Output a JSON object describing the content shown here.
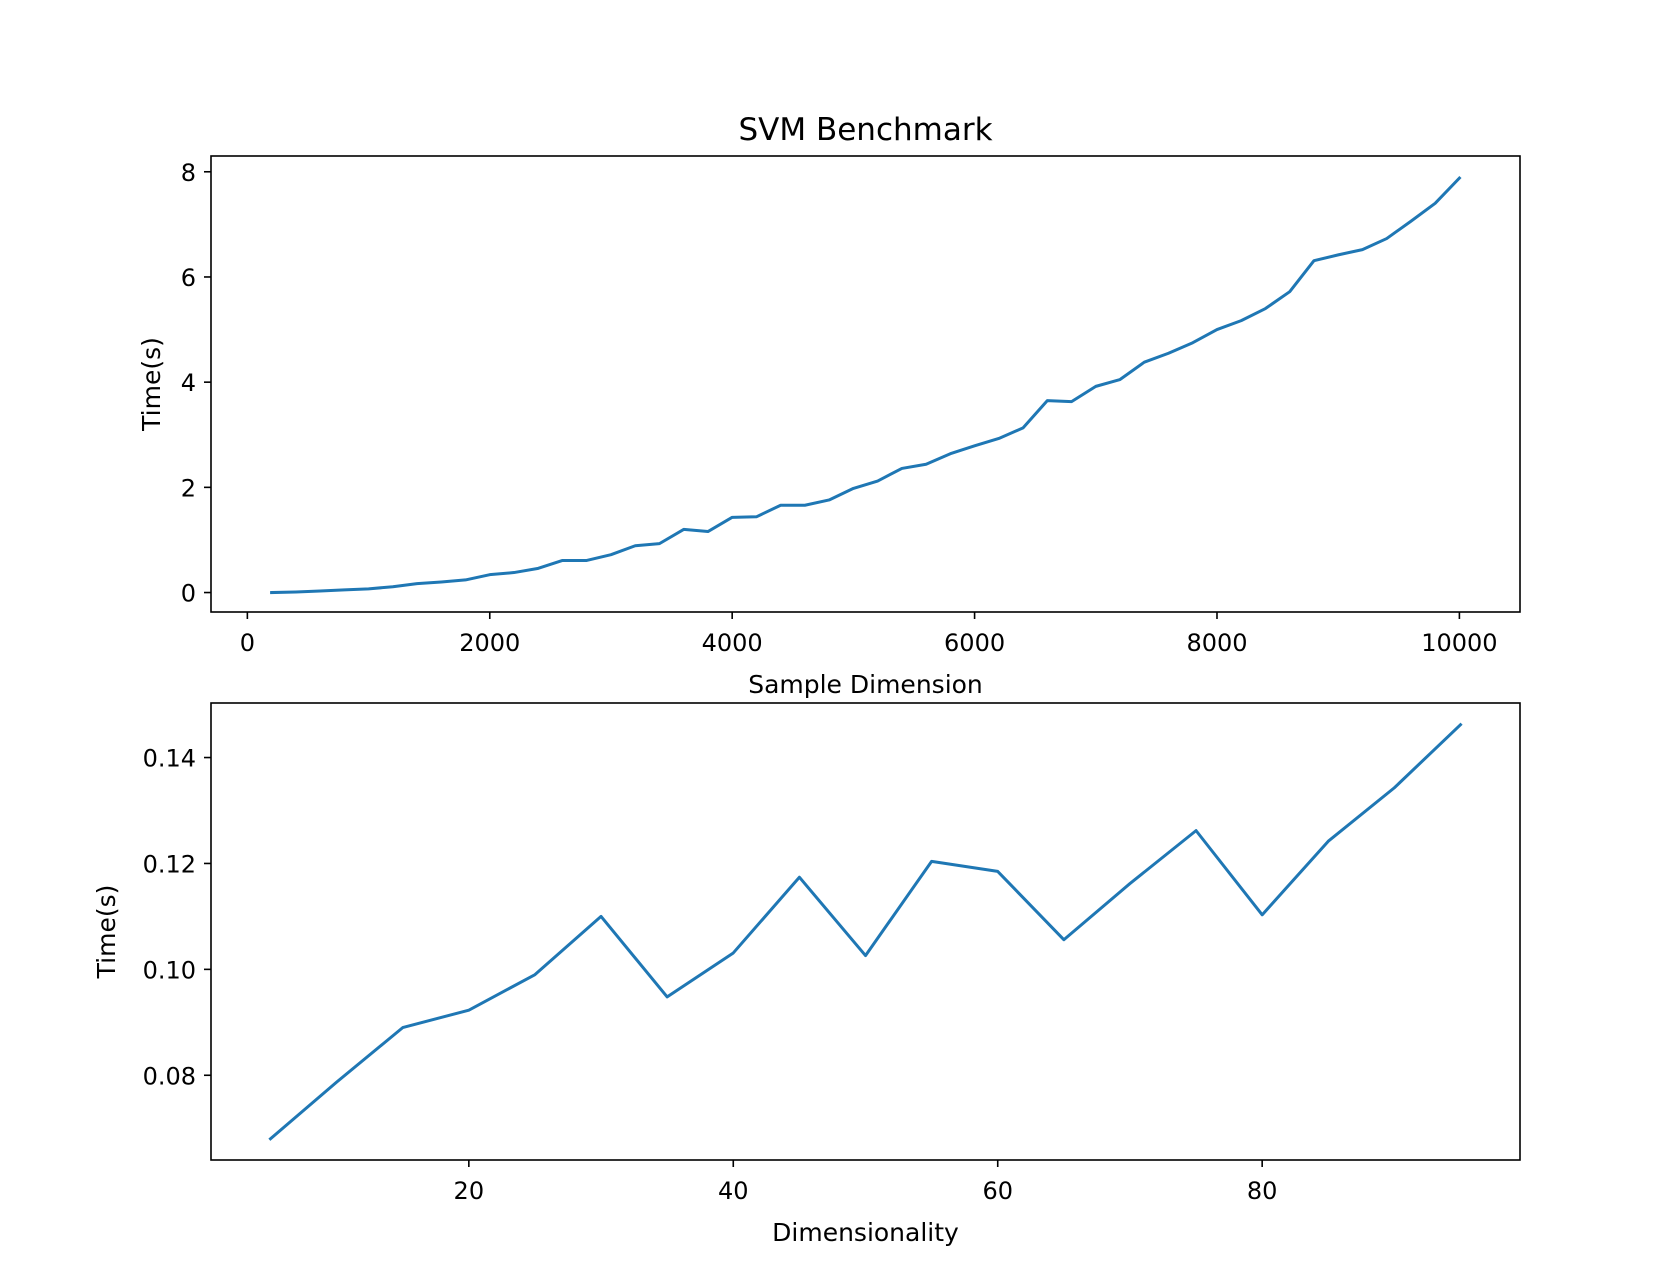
{
  "chart_data": [
    {
      "type": "line",
      "title": "SVM Benchmark",
      "xlabel": "Sample Dimension",
      "ylabel": "Time(s)",
      "xlim": [
        -300,
        10500
      ],
      "ylim": [
        -0.37,
        8.3
      ],
      "xticks": [
        0,
        2000,
        4000,
        6000,
        8000,
        10000
      ],
      "yticks": [
        0,
        2,
        4,
        6,
        8
      ],
      "grid": false,
      "line_color": "#1f77b4",
      "series": [
        {
          "x": [
            200,
            400,
            600,
            800,
            1000,
            1200,
            1400,
            1600,
            1800,
            2000,
            2200,
            2400,
            2600,
            2800,
            3000,
            3200,
            3400,
            3600,
            3800,
            4000,
            4200,
            4400,
            4600,
            4800,
            5000,
            5200,
            5400,
            5600,
            5800,
            6000,
            6200,
            6400,
            6600,
            6800,
            7000,
            7200,
            7400,
            7600,
            7800,
            8000,
            8200,
            8400,
            8600,
            8800,
            9000,
            9200,
            9400,
            9600,
            9800,
            10000
          ],
          "values": [
            0.0,
            0.01,
            0.03,
            0.05,
            0.07,
            0.11,
            0.17,
            0.2,
            0.24,
            0.34,
            0.38,
            0.46,
            0.61,
            0.61,
            0.72,
            0.89,
            0.93,
            1.2,
            1.16,
            1.43,
            1.44,
            1.66,
            1.66,
            1.76,
            1.98,
            2.12,
            2.36,
            2.44,
            2.64,
            2.79,
            2.93,
            3.13,
            3.65,
            3.63,
            3.92,
            4.05,
            4.38,
            4.55,
            4.75,
            5.0,
            5.17,
            5.4,
            5.72,
            6.31,
            6.42,
            6.52,
            6.73,
            7.06,
            7.4,
            7.88
          ]
        }
      ]
    },
    {
      "type": "line",
      "title": "",
      "xlabel": "Dimensionality",
      "ylabel": "Time(s)",
      "xlim": [
        0.5,
        99.5
      ],
      "ylim": [
        0.064,
        0.1503
      ],
      "xticks": [
        20,
        40,
        60,
        80
      ],
      "yticks": [
        0.08,
        0.1,
        0.12,
        0.14
      ],
      "ytick_labels": [
        "0.08",
        "0.10",
        "0.12",
        "0.14"
      ],
      "grid": false,
      "line_color": "#1f77b4",
      "series": [
        {
          "x": [
            5,
            10,
            15,
            20,
            25,
            30,
            35,
            40,
            45,
            50,
            55,
            60,
            65,
            70,
            75,
            80,
            85,
            90,
            95
          ],
          "values": [
            0.068,
            0.0787,
            0.089,
            0.0923,
            0.099,
            0.11,
            0.0948,
            0.1031,
            0.1174,
            0.1026,
            0.1204,
            0.1185,
            0.1056,
            0.1162,
            0.1262,
            0.1103,
            0.1242,
            0.1343,
            0.1462
          ]
        }
      ]
    }
  ]
}
